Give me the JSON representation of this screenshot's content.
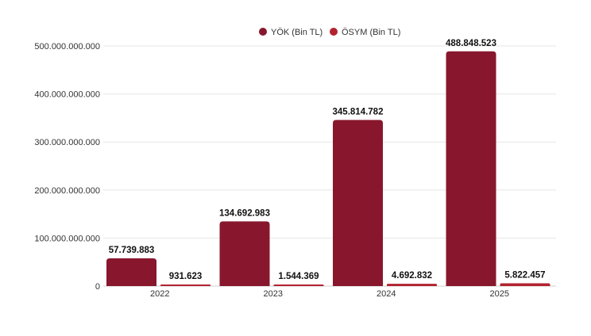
{
  "chart_data": {
    "type": "bar",
    "title": "",
    "xlabel": "",
    "ylabel": "",
    "categories": [
      "2022",
      "2023",
      "2024",
      "2025"
    ],
    "series": [
      {
        "name": "YÖK (Bin TL)",
        "color": "#88172D",
        "values": [
          57739883000,
          134692983000,
          345814782000,
          488848523000
        ],
        "labels": [
          "57.739.883",
          "134.692.983",
          "345.814.782",
          "488.848.523"
        ]
      },
      {
        "name": "ÖSYM (Bin TL)",
        "color": "#B3222F",
        "values": [
          931623000,
          1544369000,
          4692832000,
          5822457000
        ],
        "labels": [
          "931.623",
          "1.544.369",
          "4.692.832",
          "5.822.457"
        ]
      }
    ],
    "ylim": [
      0,
      500000000000
    ],
    "yticks": [
      0,
      100000000000,
      200000000000,
      300000000000,
      400000000000,
      500000000000
    ],
    "ytick_labels": [
      "0",
      "100.000.000.000",
      "200.000.000.000",
      "300.000.000.000",
      "400.000.000.000",
      "500.000.000.000"
    ],
    "grid": true,
    "legend_position": "top-center"
  }
}
